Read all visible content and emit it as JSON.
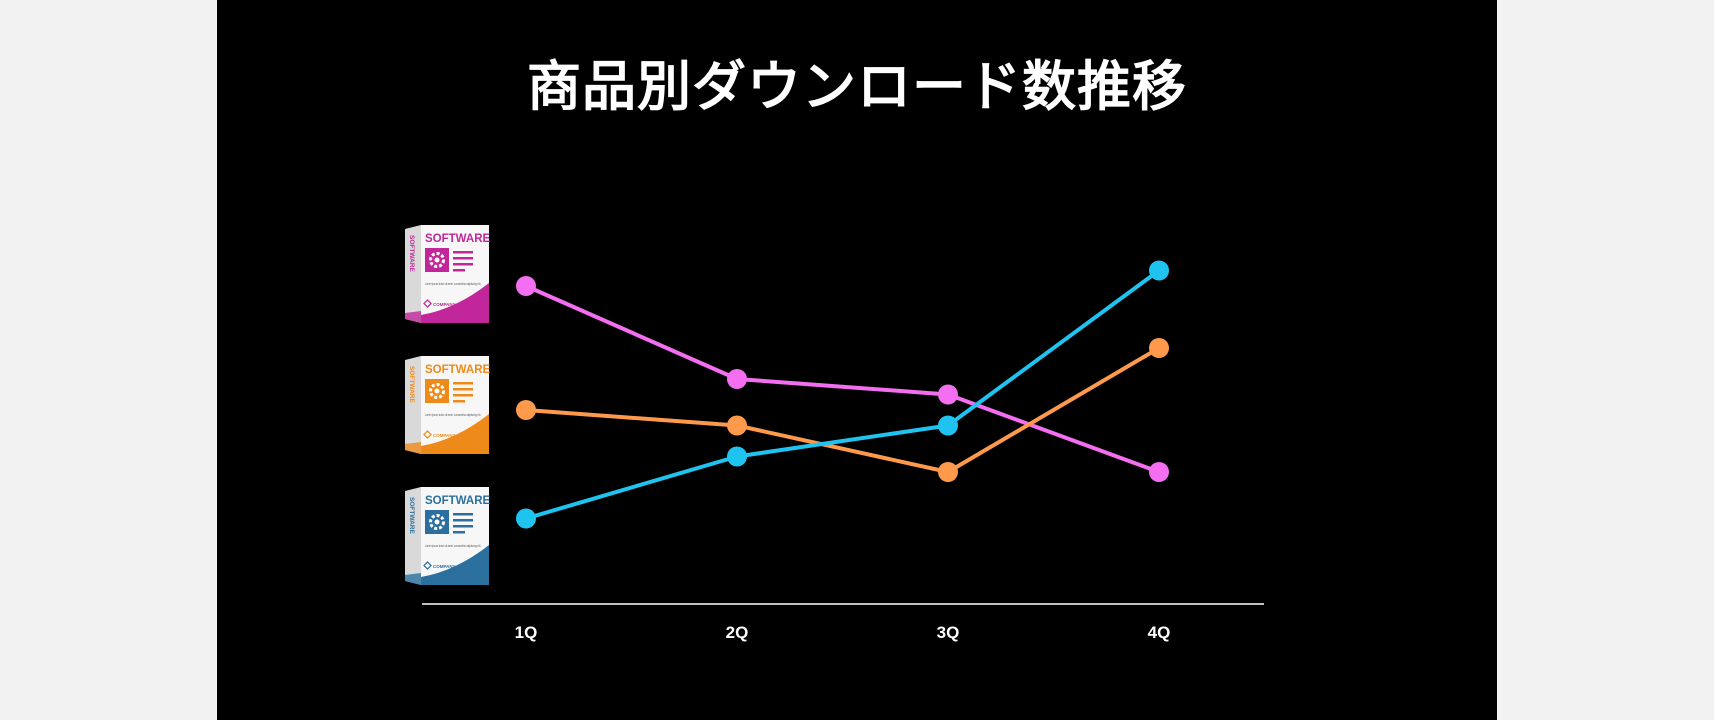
{
  "title": "商品別ダウンロード数推移",
  "products": [
    {
      "box_title": "SOFTWARE",
      "side_text": "SOFTWARE",
      "description": "Lorem ipsum dolor sit amet, consectetur adipiscing elit.",
      "company": "COMPANY",
      "color": "#c2269b",
      "icon": "gear-icon"
    },
    {
      "box_title": "SOFTWARE",
      "side_text": "SOFTWARE",
      "description": "Lorem ipsum dolor sit amet, consectetur adipiscing elit.",
      "company": "COMPANY",
      "color": "#ee8a1a",
      "icon": "gear-icon"
    },
    {
      "box_title": "SOFTWARE",
      "side_text": "SOFTWARE",
      "description": "Lorem ipsum dolor sit amet, consectetur adipiscing elit.",
      "company": "COMPANY",
      "color": "#2b6f9e",
      "icon": "gear-icon"
    }
  ],
  "chart_data": {
    "type": "line",
    "categories": [
      "1Q",
      "2Q",
      "3Q",
      "4Q"
    ],
    "ylim": [
      0,
      100
    ],
    "grid": false,
    "legend": "product boxes at left",
    "series": [
      {
        "color": "#f36ef0",
        "values": [
          90,
          60,
          55,
          30
        ]
      },
      {
        "color": "#ff9a4d",
        "values": [
          50,
          45,
          30,
          70
        ]
      },
      {
        "color": "#1fc3f0",
        "values": [
          15,
          35,
          45,
          95
        ]
      }
    ]
  }
}
